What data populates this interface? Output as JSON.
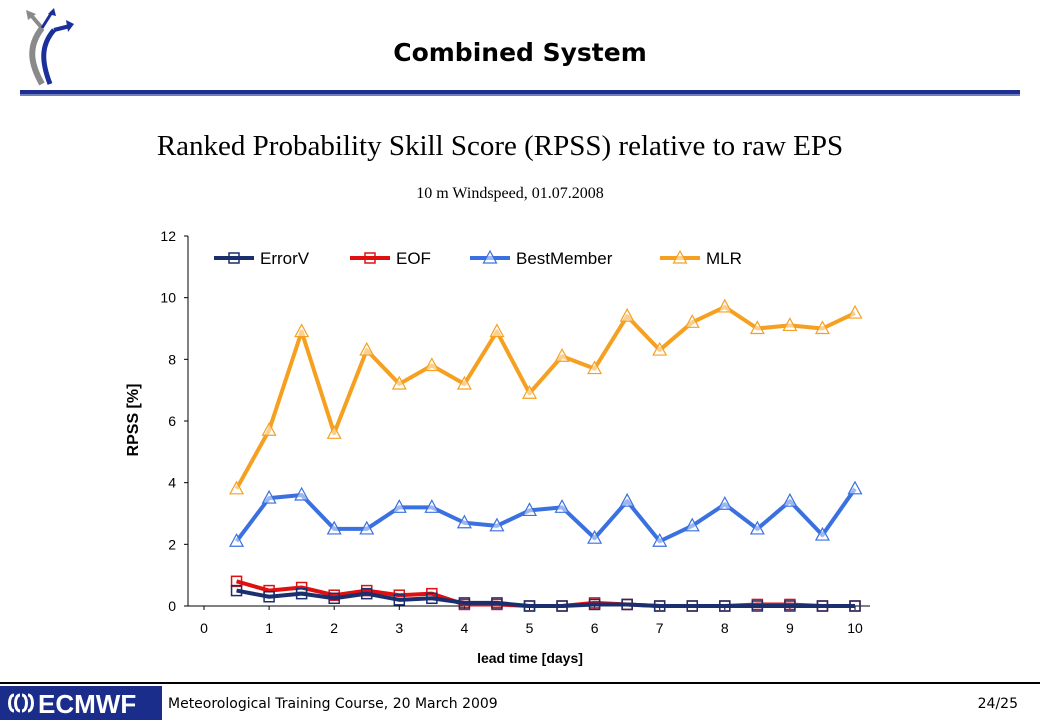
{
  "slide": {
    "title": "Combined System",
    "footer_text": "Meteorological Training Course, 20 March 2009",
    "page_number": "24/25",
    "logo_text": "ECMWF",
    "accent_color": "#1f2f8f"
  },
  "chart_data": {
    "type": "line",
    "title": "Ranked Probability Skill Score (RPSS) relative to raw EPS",
    "subtitle": "10 m Windspeed, 01.07.2008",
    "xlabel": "lead time [days]",
    "ylabel": "RPSS [%]",
    "xlim": [
      0,
      10
    ],
    "ylim": [
      0,
      12
    ],
    "x_ticks": [
      0,
      1,
      2,
      3,
      4,
      5,
      6,
      7,
      8,
      9,
      10
    ],
    "y_ticks": [
      0,
      2,
      4,
      6,
      8,
      10,
      12
    ],
    "grid": false,
    "legend_position": "top",
    "x": [
      0.5,
      1.0,
      1.5,
      2.0,
      2.5,
      3.0,
      3.5,
      4.0,
      4.5,
      5.0,
      5.5,
      6.0,
      6.5,
      7.0,
      7.5,
      8.0,
      8.5,
      9.0,
      9.5,
      10.0
    ],
    "series": [
      {
        "name": "ErrorV",
        "color": "#1b2f6e",
        "marker": "square",
        "values": [
          0.5,
          0.3,
          0.4,
          0.25,
          0.4,
          0.2,
          0.25,
          0.1,
          0.1,
          0.0,
          0.0,
          0.05,
          0.05,
          0.0,
          0.0,
          0.0,
          0.0,
          0.0,
          0.0,
          0.0
        ]
      },
      {
        "name": "EOF",
        "color": "#e01010",
        "marker": "square",
        "values": [
          0.8,
          0.5,
          0.6,
          0.35,
          0.5,
          0.35,
          0.4,
          0.05,
          0.05,
          0.0,
          0.0,
          0.1,
          0.05,
          0.0,
          0.0,
          0.0,
          0.05,
          0.05,
          0.0,
          0.0
        ]
      },
      {
        "name": "BestMember",
        "color": "#3a70e0",
        "marker": "triangle",
        "values": [
          2.1,
          3.5,
          3.6,
          2.5,
          2.5,
          3.2,
          3.2,
          2.7,
          2.6,
          3.1,
          3.2,
          2.2,
          3.4,
          2.1,
          2.6,
          3.3,
          2.5,
          3.4,
          2.3,
          3.8
        ]
      },
      {
        "name": "MLR",
        "color": "#f5a020",
        "marker": "triangle",
        "values": [
          3.8,
          5.7,
          8.9,
          5.6,
          8.3,
          7.2,
          7.8,
          7.2,
          8.9,
          6.9,
          8.1,
          7.7,
          9.4,
          8.3,
          9.2,
          9.7,
          9.0,
          9.1,
          9.0,
          9.5
        ]
      }
    ]
  }
}
